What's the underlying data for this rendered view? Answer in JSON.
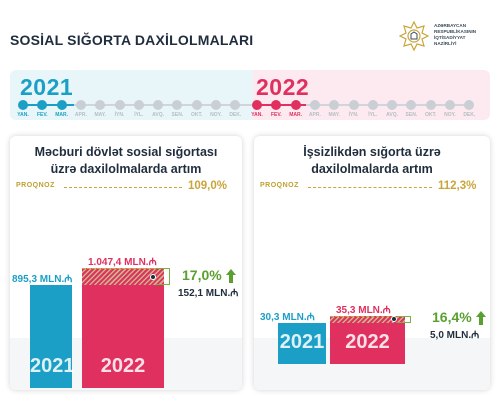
{
  "header": {
    "title": "SOSİAL SIĞORTA DAXİLOLMALARI",
    "logo_lines": [
      "AZƏRBAYCAN",
      "RESPUBLİKASININ",
      "İQTİSADİYYAT",
      "NAZİRLİYİ"
    ]
  },
  "timeline": {
    "year_2021": "2021",
    "year_2022": "2022",
    "months_2021": [
      "YAN.",
      "FEV.",
      "MAR.",
      "APR.",
      "MAY.",
      "İYN.",
      "İYL.",
      "AVQ.",
      "SEN.",
      "OKT.",
      "NOY.",
      "DEK."
    ],
    "months_2022": [
      "YAN.",
      "FEV.",
      "MAR.",
      "APR.",
      "MAY.",
      "İYN.",
      "İYL.",
      "AVQ.",
      "SEN.",
      "OKT.",
      "NOY.",
      "DEK."
    ],
    "active_months": 3,
    "colors": {
      "y2021": "#1b9fc6",
      "y2022": "#e0305f",
      "inactive": "#c9cfd5"
    }
  },
  "chart_data": [
    {
      "type": "bar",
      "title": "Məcburi dövlət sosial sığortası üzrə daxilolmalarda artım",
      "title_lines": [
        "Məcburi dövlət sosial sığortası",
        "üzrə daxilolmalarda artım"
      ],
      "categories": [
        "2021",
        "2022"
      ],
      "values": [
        895.3,
        1047.4
      ],
      "value_labels": [
        "895,3 MLN.₼",
        "1.047,4 MLN.₼"
      ],
      "forecast_label": "PROQNOZ",
      "forecast_value": "109,0%",
      "growth_percent": "17,0%",
      "growth_absolute": "152,1 MLN.₼",
      "colors": [
        "#1b9fc6",
        "#e0305f"
      ]
    },
    {
      "type": "bar",
      "title": "İşsizlikdən sığorta üzrə daxilolmalarda artım",
      "title_lines": [
        "İşsizlikdən sığorta üzrə",
        "daxilolmalarda artım"
      ],
      "categories": [
        "2021",
        "2022"
      ],
      "values": [
        30.3,
        35.3
      ],
      "value_labels": [
        "30,3 MLN.₼",
        "35,3 MLN.₼"
      ],
      "forecast_label": "PROQNOZ",
      "forecast_value": "112,3%",
      "growth_percent": "16,4%",
      "growth_absolute": "5,0 MLN.₼",
      "colors": [
        "#1b9fc6",
        "#e0305f"
      ]
    }
  ]
}
